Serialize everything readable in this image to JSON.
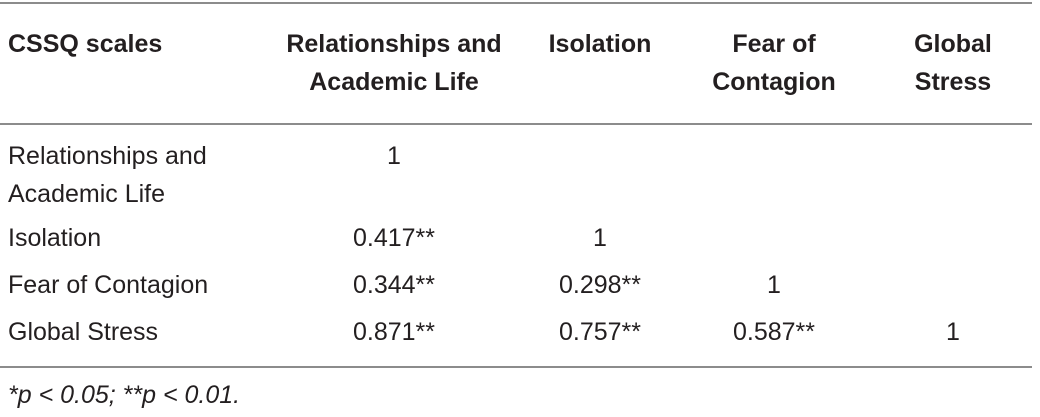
{
  "table": {
    "headers": [
      "CSSQ scales",
      "Relationships and Academic Life",
      "Isolation",
      "Fear of Contagion",
      "Global Stress"
    ],
    "rows": [
      {
        "label": "Relationships and Academic Life",
        "cells": [
          "1",
          "",
          "",
          ""
        ]
      },
      {
        "label": "Isolation",
        "cells": [
          "0.417**",
          "1",
          "",
          ""
        ]
      },
      {
        "label": "Fear of Contagion",
        "cells": [
          "0.344**",
          "0.298**",
          "1",
          ""
        ]
      },
      {
        "label": "Global Stress",
        "cells": [
          "0.871**",
          "0.757**",
          "0.587**",
          "1"
        ]
      }
    ]
  },
  "footnote": "*p < 0.05; **p < 0.01."
}
